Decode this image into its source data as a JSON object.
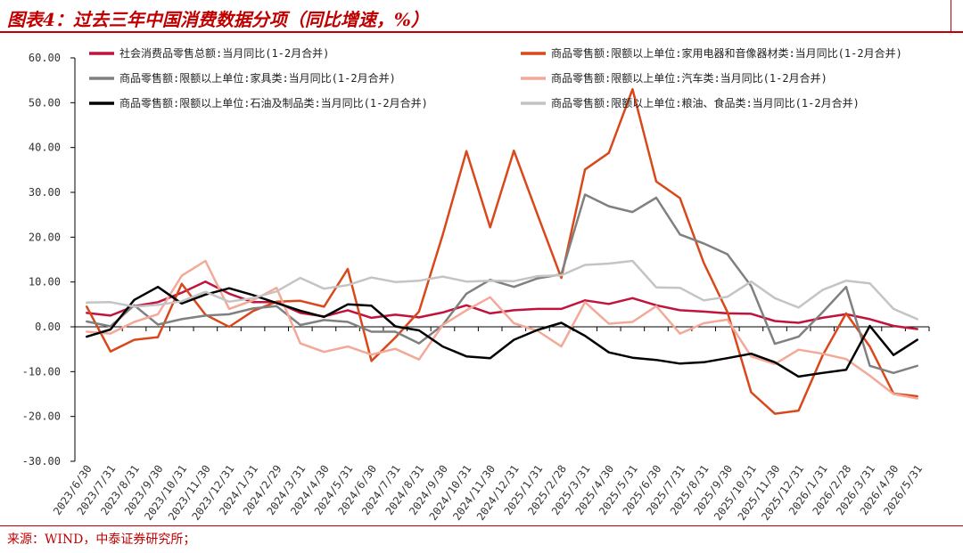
{
  "header": {
    "title": "图表4：过去三年中国消费数据分项（同比增速，%）"
  },
  "footer": {
    "source": "来源：WIND，中泰证券研究所；"
  },
  "chart_data": {
    "type": "line",
    "title": "",
    "xlabel": "",
    "ylabel": "",
    "ylim": [
      -30,
      60
    ],
    "yticks": [
      "60.00",
      "50.00",
      "40.00",
      "30.00",
      "20.00",
      "10.00",
      "0.00",
      "-10.00",
      "-20.00",
      "-30.00"
    ],
    "ytick_values": [
      60,
      50,
      40,
      30,
      20,
      10,
      0,
      -10,
      -20,
      -30
    ],
    "grid": false,
    "legend_position": "top",
    "categories": [
      "2023/6/30",
      "2023/7/31",
      "2023/8/31",
      "2023/9/30",
      "2023/10/31",
      "2023/11/30",
      "2023/12/31",
      "2024/1/31",
      "2024/2/29",
      "2024/3/31",
      "2024/4/30",
      "2024/5/31",
      "2024/6/30",
      "2024/7/31",
      "2024/8/31",
      "2024/9/30",
      "2024/10/31",
      "2024/11/30",
      "2024/12/31",
      "2025/1/31",
      "2025/2/28",
      "2025/3/31",
      "2025/4/30",
      "2025/5/31",
      "2025/6/30",
      "2025/7/31",
      "2025/8/31",
      "2025/9/30",
      "2025/10/31",
      "2025/11/30",
      "2025/12/31",
      "2026/1/31",
      "2026/2/28",
      "2026/3/31",
      "2026/4/30",
      "2026/5/31"
    ],
    "series": [
      {
        "name": "社会消费品零售总额:当月同比(1-2月合并)",
        "color": "#c0143c",
        "width": 2.5,
        "values": [
          3.1,
          2.5,
          4.6,
          5.5,
          7.6,
          10.1,
          7.4,
          5.5,
          5.5,
          3.1,
          2.3,
          3.7,
          2.0,
          2.7,
          2.1,
          3.2,
          4.8,
          3.0,
          3.7,
          4.0,
          4.0,
          5.9,
          5.1,
          6.4,
          4.8,
          3.7,
          3.4,
          3.0,
          2.9,
          1.3,
          0.9,
          2.0,
          2.8,
          1.7,
          0.2,
          -0.5
        ]
      },
      {
        "name": "商品零售额:限额以上单位:家用电器和音像器材类:当月同比(1-2月合并)",
        "color": "#d9481a",
        "width": 2.5,
        "values": [
          4.5,
          -5.5,
          -2.9,
          -2.3,
          9.6,
          2.7,
          0.0,
          3.5,
          5.6,
          5.8,
          4.5,
          12.9,
          -7.6,
          -2.4,
          3.4,
          20.5,
          39.2,
          22.2,
          39.3,
          25.0,
          10.9,
          35.1,
          38.8,
          53.0,
          32.4,
          28.7,
          14.3,
          3.3,
          -14.6,
          -19.4,
          -18.7,
          -6.5,
          3.0,
          -4.4,
          -14.9,
          -15.5
        ]
      },
      {
        "name": "商品零售额:限额以上单位:家具类:当月同比(1-2月合并)",
        "color": "#808080",
        "width": 2.5,
        "values": [
          1.2,
          0.1,
          4.8,
          0.5,
          1.7,
          2.5,
          2.8,
          4.1,
          4.6,
          0.4,
          1.5,
          1.1,
          -1.1,
          -1.1,
          -3.7,
          0.4,
          7.4,
          10.5,
          8.9,
          10.8,
          11.7,
          29.5,
          26.9,
          25.6,
          28.8,
          20.6,
          18.6,
          16.2,
          9.1,
          -3.8,
          -2.2,
          3.2,
          8.9,
          -8.7,
          -10.3,
          -8.7
        ]
      },
      {
        "name": "商品零售额:限额以上单位:汽车类:当月同比(1-2月合并)",
        "color": "#f4a898",
        "width": 2.5,
        "values": [
          -1.1,
          -1.5,
          1.1,
          2.8,
          11.4,
          14.7,
          4.0,
          5.9,
          8.7,
          -3.7,
          -5.6,
          -4.4,
          -6.2,
          -4.9,
          -7.3,
          0.4,
          3.7,
          6.6,
          0.8,
          -0.9,
          -4.4,
          5.5,
          0.7,
          1.1,
          4.6,
          -1.5,
          0.8,
          1.6,
          -6.6,
          -8.3,
          -5.1,
          -6.0,
          -7.2,
          -10.9,
          -15.0,
          -16.0
        ]
      },
      {
        "name": "商品零售额:限额以上单位:石油及制品类:当月同比(1-2月合并)",
        "color": "#000000",
        "width": 2.5,
        "values": [
          -2.2,
          -0.6,
          6.0,
          8.9,
          5.2,
          7.2,
          8.6,
          7.1,
          5.3,
          3.6,
          2.2,
          5.0,
          4.7,
          0.1,
          -0.8,
          -4.4,
          -6.6,
          -7.0,
          -2.9,
          -0.7,
          0.9,
          -2.0,
          -5.7,
          -6.9,
          -7.4,
          -8.2,
          -7.9,
          -7.0,
          -6.0,
          -7.9,
          -11.1,
          -10.3,
          -9.6,
          0.2,
          -6.3,
          -2.9
        ]
      },
      {
        "name": "商品零售额:限额以上单位:粮油、食品类:当月同比(1-2月合并)",
        "color": "#c4c4c4",
        "width": 2.5,
        "values": [
          5.4,
          5.5,
          4.5,
          4.9,
          5.7,
          7.8,
          5.6,
          6.4,
          7.9,
          10.9,
          8.5,
          9.3,
          11.0,
          10.0,
          10.3,
          11.2,
          10.1,
          10.3,
          10.2,
          11.3,
          11.5,
          13.8,
          14.1,
          14.7,
          8.8,
          8.7,
          5.9,
          6.7,
          10.1,
          6.4,
          4.3,
          8.2,
          10.3,
          9.7,
          4.0,
          1.7
        ]
      }
    ]
  }
}
